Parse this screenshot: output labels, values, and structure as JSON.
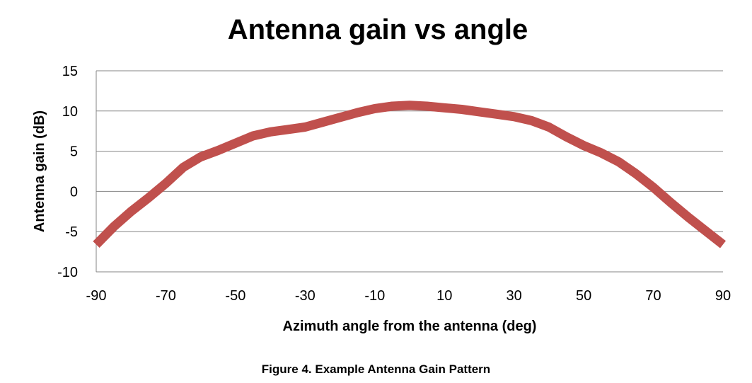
{
  "chart_data": {
    "type": "line",
    "title": "Antenna gain vs angle",
    "xlabel": "Azimuth angle from the antenna (deg)",
    "ylabel": "Antenna gain (dB)",
    "xlim": [
      -90,
      90
    ],
    "ylim": [
      -10,
      15
    ],
    "xticks": [
      -90,
      -70,
      -50,
      -30,
      -10,
      10,
      30,
      50,
      70,
      90
    ],
    "yticks": [
      -10,
      -5,
      0,
      5,
      10,
      15
    ],
    "grid": "horizontal",
    "legend": "none",
    "series": [
      {
        "name": "Antenna gain",
        "color": "#c0504d",
        "x": [
          -90,
          -85,
          -80,
          -75,
          -70,
          -65,
          -60,
          -55,
          -50,
          -45,
          -40,
          -35,
          -30,
          -25,
          -20,
          -15,
          -10,
          -5,
          0,
          5,
          10,
          15,
          20,
          25,
          30,
          35,
          40,
          45,
          50,
          55,
          60,
          65,
          70,
          75,
          80,
          85,
          90
        ],
        "y": [
          -6.6,
          -4.4,
          -2.5,
          -0.8,
          1.0,
          3.0,
          4.3,
          5.1,
          6.0,
          6.9,
          7.4,
          7.7,
          8.0,
          8.6,
          9.2,
          9.8,
          10.3,
          10.6,
          10.7,
          10.6,
          10.4,
          10.2,
          9.9,
          9.6,
          9.3,
          8.8,
          8.0,
          6.8,
          5.7,
          4.8,
          3.7,
          2.2,
          0.5,
          -1.4,
          -3.2,
          -4.9,
          -6.6
        ]
      }
    ]
  },
  "caption": "Figure 4. Example Antenna Gain Pattern"
}
